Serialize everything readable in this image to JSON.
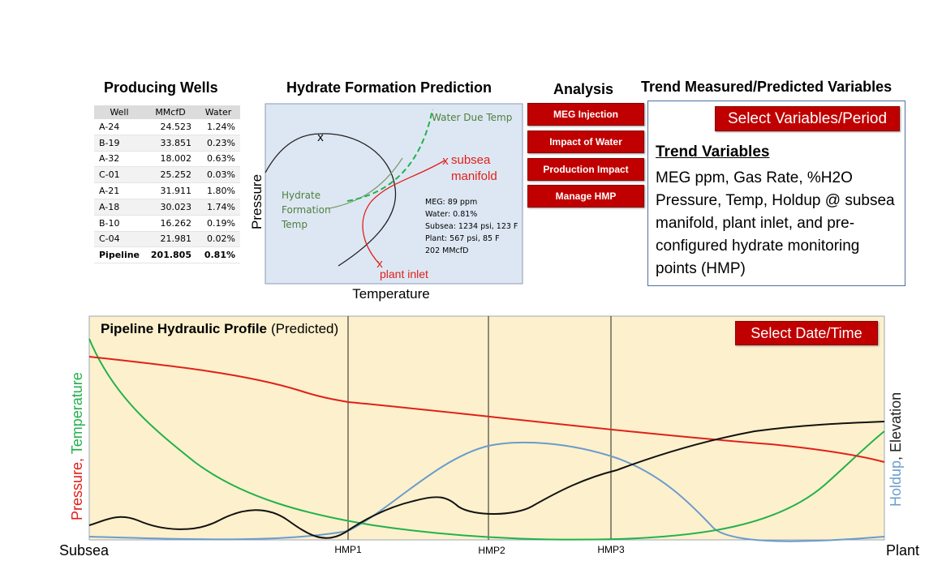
{
  "wells": {
    "title": "Producing Wells",
    "columns": [
      "Well",
      "MMcfD",
      "Water"
    ],
    "rows": [
      [
        "A-24",
        "24.523",
        "1.24%"
      ],
      [
        "B-19",
        "33.851",
        "0.23%"
      ],
      [
        "A-32",
        "18.002",
        "0.63%"
      ],
      [
        "C-01",
        "25.252",
        "0.03%"
      ],
      [
        "A-21",
        "31.911",
        "1.80%"
      ],
      [
        "A-18",
        "30.023",
        "1.74%"
      ],
      [
        "B-10",
        "16.262",
        "0.19%"
      ],
      [
        "C-04",
        "21.981",
        "0.02%"
      ]
    ],
    "total": [
      "Pipeline",
      "201.805",
      "0.81%"
    ]
  },
  "hydrate": {
    "title": "Hydrate Formation Prediction",
    "y_axis": "Pressure",
    "x_axis": "Temperature",
    "water_due_temp": "Water Due Temp",
    "hydrate_temp": [
      "Hydrate",
      "Formation",
      "Temp"
    ],
    "subsea": [
      "subsea",
      "manifold"
    ],
    "plant": "plant inlet",
    "marker": "x",
    "info": [
      "MEG: 89 ppm",
      "Water: 0.81%",
      "Subsea: 1234 psi, 123 F",
      "Plant: 567 psi, 85 F",
      "202 MMcfD"
    ]
  },
  "analysis": {
    "title": "Analysis",
    "buttons": [
      "MEG Injection",
      "Impact of Water",
      "Production Impact",
      "Manage HMP"
    ]
  },
  "trend": {
    "title": "Trend Measured/Predicted Variables",
    "select_button": "Select Variables/Period",
    "heading": "Trend Variables",
    "text": "MEG ppm, Gas Rate, %H2O Pressure, Temp, Holdup @ subsea manifold, plant inlet, and pre-configured hydrate monitoring points (HMP)"
  },
  "profile": {
    "title_bold": "Pipeline Hydraulic Profile",
    "title_normal": "(Predicted)",
    "select_button": "Select Date/Time",
    "left_axis": [
      "Pressure",
      ", ",
      "Temperature"
    ],
    "right_axis": [
      "Holdup",
      ", Elevation"
    ],
    "x_start": "Subsea",
    "x_end": "Plant",
    "hmp": [
      "HMP1",
      "HMP2",
      "HMP3"
    ]
  },
  "colors": {
    "pressure": "#e0201a",
    "temperature": "#22b14c",
    "holdup": "#6a9ccc",
    "elevation": "#111111",
    "button_red": "#c00000",
    "panel_bg": "#fdf0cc",
    "hydrate_bg": "#dde7f3"
  }
}
